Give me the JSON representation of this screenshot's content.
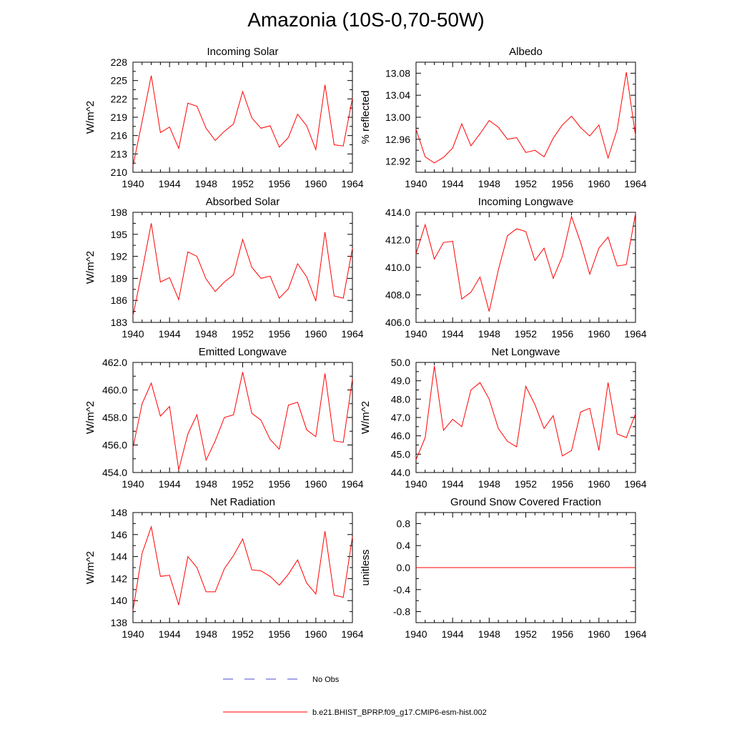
{
  "title": "Amazonia (10S-0,70-50W)",
  "legend": {
    "obs_label": "No Obs",
    "model_label": "b.e21.BHIST_BPRP.f09_g17.CMIP6-esm-hist.002"
  },
  "colors": {
    "model": "#ff0000",
    "obs": "#4a4ad0",
    "axis": "#000000"
  },
  "chart_data": [
    {
      "type": "line",
      "title": "Incoming Solar",
      "ylabel": "W/m^2",
      "ylim": [
        210,
        228
      ],
      "yticks": [
        "210",
        "213",
        "216",
        "219",
        "222",
        "225",
        "228"
      ],
      "xlim": [
        1940,
        1964
      ],
      "xticks": [
        "1940",
        "1944",
        "1948",
        "1952",
        "1956",
        "1960",
        "1964"
      ],
      "x": [
        1940,
        1941,
        1942,
        1943,
        1944,
        1945,
        1946,
        1947,
        1948,
        1949,
        1950,
        1951,
        1952,
        1953,
        1954,
        1955,
        1956,
        1957,
        1958,
        1959,
        1960,
        1961,
        1962,
        1963,
        1964
      ],
      "series": [
        {
          "values": [
            211.0,
            218.3,
            225.8,
            216.5,
            217.4,
            213.9,
            221.3,
            220.8,
            217.2,
            215.2,
            216.7,
            217.9,
            223.2,
            218.9,
            217.2,
            217.6,
            214.1,
            215.7,
            219.5,
            217.6,
            213.7,
            224.3,
            214.5,
            214.3,
            222.1
          ]
        }
      ]
    },
    {
      "type": "line",
      "title": "Albedo",
      "ylabel": "% reflected",
      "ylim": [
        12.9,
        13.1
      ],
      "yticks": [
        "12.92",
        "12.96",
        "13.00",
        "13.04",
        "13.08"
      ],
      "xlim": [
        1940,
        1964
      ],
      "xticks": [
        "1940",
        "1944",
        "1948",
        "1952",
        "1956",
        "1960",
        "1964"
      ],
      "x": [
        1940,
        1941,
        1942,
        1943,
        1944,
        1945,
        1946,
        1947,
        1948,
        1949,
        1950,
        1951,
        1952,
        1953,
        1954,
        1955,
        1956,
        1957,
        1958,
        1959,
        1960,
        1961,
        1962,
        1963,
        1964
      ],
      "series": [
        {
          "values": [
            12.978,
            12.928,
            12.917,
            12.927,
            12.944,
            12.988,
            12.948,
            12.97,
            12.994,
            12.982,
            12.96,
            12.963,
            12.936,
            12.94,
            12.928,
            12.962,
            12.986,
            13.002,
            12.981,
            12.966,
            12.986,
            12.926,
            12.978,
            13.082,
            12.967
          ]
        }
      ]
    },
    {
      "type": "line",
      "title": "Absorbed Solar",
      "ylabel": "W/m^2",
      "ylim": [
        183,
        198
      ],
      "yticks": [
        "183",
        "186",
        "189",
        "192",
        "195",
        "198"
      ],
      "xlim": [
        1940,
        1964
      ],
      "xticks": [
        "1940",
        "1944",
        "1948",
        "1952",
        "1956",
        "1960",
        "1964"
      ],
      "x": [
        1940,
        1941,
        1942,
        1943,
        1944,
        1945,
        1946,
        1947,
        1948,
        1949,
        1950,
        1951,
        1952,
        1953,
        1954,
        1955,
        1956,
        1957,
        1958,
        1959,
        1960,
        1961,
        1962,
        1963,
        1964
      ],
      "series": [
        {
          "values": [
            183.9,
            190.0,
            196.5,
            188.5,
            189.1,
            186.1,
            192.6,
            192.0,
            188.9,
            187.2,
            188.5,
            189.5,
            194.3,
            190.5,
            189.0,
            189.3,
            186.3,
            187.6,
            191.0,
            189.2,
            185.9,
            195.3,
            186.6,
            186.3,
            193.1
          ]
        }
      ]
    },
    {
      "type": "line",
      "title": "Incoming Longwave",
      "ylabel": "",
      "ylim": [
        406.0,
        414.0
      ],
      "yticks": [
        "406.0",
        "408.0",
        "410.0",
        "412.0",
        "414.0"
      ],
      "xlim": [
        1940,
        1964
      ],
      "xticks": [
        "1940",
        "1944",
        "1948",
        "1952",
        "1956",
        "1960",
        "1964"
      ],
      "x": [
        1940,
        1941,
        1942,
        1943,
        1944,
        1945,
        1946,
        1947,
        1948,
        1949,
        1950,
        1951,
        1952,
        1953,
        1954,
        1955,
        1956,
        1957,
        1958,
        1959,
        1960,
        1961,
        1962,
        1963,
        1964
      ],
      "series": [
        {
          "values": [
            411.0,
            413.1,
            410.6,
            411.8,
            411.9,
            407.7,
            408.2,
            409.3,
            406.8,
            409.8,
            412.3,
            412.8,
            412.6,
            410.5,
            411.4,
            409.2,
            410.8,
            413.7,
            411.8,
            409.5,
            411.4,
            412.2,
            410.1,
            410.2,
            413.9
          ]
        }
      ]
    },
    {
      "type": "line",
      "title": "Emitted Longwave",
      "ylabel": "W/m^2",
      "ylim": [
        454.0,
        462.0
      ],
      "yticks": [
        "454.0",
        "456.0",
        "458.0",
        "460.0",
        "462.0"
      ],
      "xlim": [
        1940,
        1964
      ],
      "xticks": [
        "1940",
        "1944",
        "1948",
        "1952",
        "1956",
        "1960",
        "1964"
      ],
      "x": [
        1940,
        1941,
        1942,
        1943,
        1944,
        1945,
        1946,
        1947,
        1948,
        1949,
        1950,
        1951,
        1952,
        1953,
        1954,
        1955,
        1956,
        1957,
        1958,
        1959,
        1960,
        1961,
        1962,
        1963,
        1964
      ],
      "series": [
        {
          "values": [
            455.8,
            459.0,
            460.5,
            458.1,
            458.8,
            454.2,
            456.8,
            458.2,
            454.9,
            456.3,
            458.0,
            458.2,
            461.3,
            458.3,
            457.8,
            456.4,
            455.7,
            458.9,
            459.1,
            457.1,
            456.6,
            461.2,
            456.3,
            456.2,
            460.8
          ]
        }
      ]
    },
    {
      "type": "line",
      "title": "Net Longwave",
      "ylabel": "W/m^2",
      "ylim": [
        44.0,
        50.0
      ],
      "yticks": [
        "44.0",
        "45.0",
        "46.0",
        "47.0",
        "48.0",
        "49.0",
        "50.0"
      ],
      "xlim": [
        1940,
        1964
      ],
      "xticks": [
        "1940",
        "1944",
        "1948",
        "1952",
        "1956",
        "1960",
        "1964"
      ],
      "x": [
        1940,
        1941,
        1942,
        1943,
        1944,
        1945,
        1946,
        1947,
        1948,
        1949,
        1950,
        1951,
        1952,
        1953,
        1954,
        1955,
        1956,
        1957,
        1958,
        1959,
        1960,
        1961,
        1962,
        1963,
        1964
      ],
      "series": [
        {
          "values": [
            44.7,
            45.9,
            49.8,
            46.3,
            46.9,
            46.5,
            48.5,
            48.9,
            48.0,
            46.4,
            45.7,
            45.4,
            48.7,
            47.7,
            46.4,
            47.1,
            44.9,
            45.2,
            47.3,
            47.5,
            45.2,
            48.9,
            46.1,
            45.9,
            47.2
          ]
        }
      ]
    },
    {
      "type": "line",
      "title": "Net Radiation",
      "ylabel": "W/m^2",
      "ylim": [
        138,
        148
      ],
      "yticks": [
        "138",
        "140",
        "142",
        "144",
        "146",
        "148"
      ],
      "xlim": [
        1940,
        1964
      ],
      "xticks": [
        "1940",
        "1944",
        "1948",
        "1952",
        "1956",
        "1960",
        "1964"
      ],
      "x": [
        1940,
        1941,
        1942,
        1943,
        1944,
        1945,
        1946,
        1947,
        1948,
        1949,
        1950,
        1951,
        1952,
        1953,
        1954,
        1955,
        1956,
        1957,
        1958,
        1959,
        1960,
        1961,
        1962,
        1963,
        1964
      ],
      "series": [
        {
          "values": [
            139.1,
            144.3,
            146.7,
            142.2,
            142.3,
            139.6,
            144.0,
            143.0,
            140.8,
            140.8,
            142.9,
            144.1,
            145.6,
            142.8,
            142.7,
            142.2,
            141.4,
            142.4,
            143.7,
            141.6,
            140.6,
            146.3,
            140.5,
            140.3,
            145.8
          ]
        }
      ]
    },
    {
      "type": "line",
      "title": "Ground Snow Covered Fraction",
      "ylabel": "unitless",
      "ylim": [
        -1.0,
        1.0
      ],
      "yticks": [
        "-0.8",
        "-0.4",
        "0.0",
        "0.4",
        "0.8"
      ],
      "xlim": [
        1940,
        1964
      ],
      "xticks": [
        "1940",
        "1944",
        "1948",
        "1952",
        "1956",
        "1960",
        "1964"
      ],
      "x": [
        1940,
        1941,
        1942,
        1943,
        1944,
        1945,
        1946,
        1947,
        1948,
        1949,
        1950,
        1951,
        1952,
        1953,
        1954,
        1955,
        1956,
        1957,
        1958,
        1959,
        1960,
        1961,
        1962,
        1963,
        1964
      ],
      "series": [
        {
          "values": [
            0,
            0,
            0,
            0,
            0,
            0,
            0,
            0,
            0,
            0,
            0,
            0,
            0,
            0,
            0,
            0,
            0,
            0,
            0,
            0,
            0,
            0,
            0,
            0,
            0
          ]
        }
      ]
    }
  ]
}
